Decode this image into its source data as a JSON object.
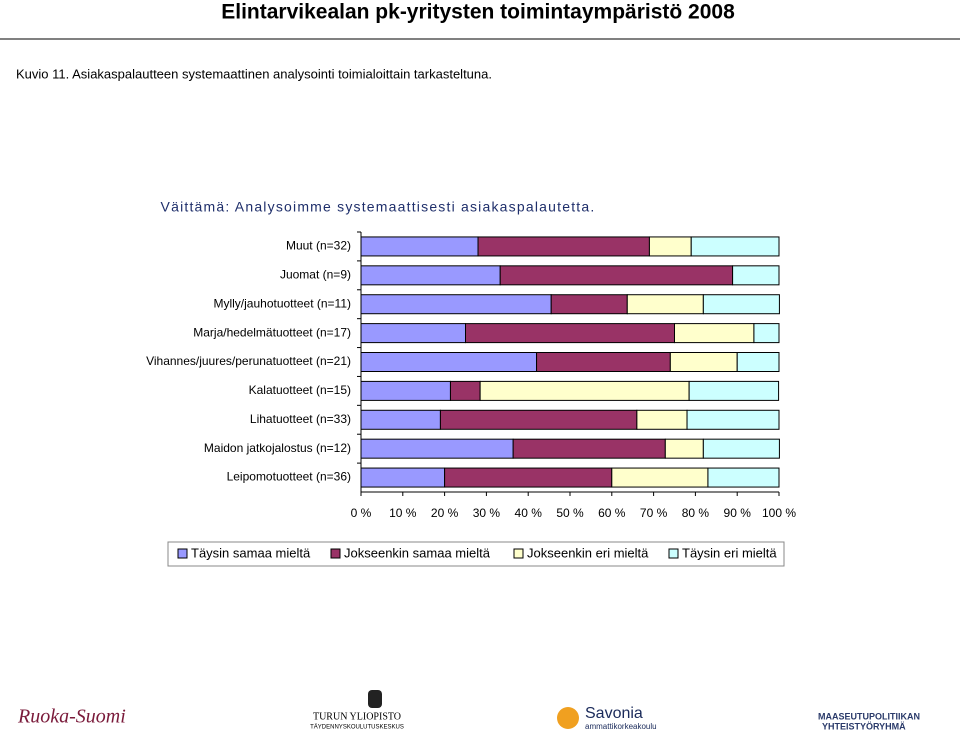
{
  "header": {
    "title": "Elintarvikealan pk-yritysten toimintaympäristö 2008"
  },
  "caption": "Kuvio 11. Asiakaspalautteen systemaattinen analysointi toimialoittain tarkasteltuna.",
  "chart_data": {
    "type": "stacked-bar-horizontal",
    "title": "Väittämä: Analysoimme systemaattisesti asiakaspalautetta.",
    "categories": [
      "Muut (n=32)",
      "Juomat (n=9)",
      "Mylly/jauhotuotteet (n=11)",
      "Marja/hedelmätuotteet (n=17)",
      "Vihannes/juures/perunatuotteet (n=21)",
      "Kalatuotteet (n=15)",
      "Lihatuotteet (n=33)",
      "Maidon jatkojalostus (n=12)",
      "Leipomotuotteet (n=36)"
    ],
    "series": [
      {
        "name": "Täysin samaa mieltä",
        "color": "#9999ff",
        "values": [
          28,
          33.3,
          45.5,
          25,
          42,
          21.4,
          19,
          36.4,
          20
        ]
      },
      {
        "name": "Jokseenkin samaa mieltä",
        "color": "#993366",
        "values": [
          41,
          55.6,
          18.2,
          50,
          32,
          7.1,
          47,
          36.4,
          40
        ]
      },
      {
        "name": "Jokseenkin eri mieltä",
        "color": "#ffffcc",
        "values": [
          10,
          0,
          18.2,
          19,
          16,
          50,
          12,
          9.1,
          23
        ]
      },
      {
        "name": "Täysin eri mieltä",
        "color": "#ccffff",
        "values": [
          21,
          11.1,
          18.2,
          6,
          10,
          21.4,
          22,
          18.2,
          17
        ]
      }
    ],
    "xlim": [
      0,
      100
    ],
    "xticks": [
      {
        "value": 0,
        "label": "0 %"
      },
      {
        "value": 10,
        "label": "10 %"
      },
      {
        "value": 20,
        "label": "20 %"
      },
      {
        "value": 30,
        "label": "30 %"
      },
      {
        "value": 40,
        "label": "40 %"
      },
      {
        "value": 50,
        "label": "50 %"
      },
      {
        "value": 60,
        "label": "60 %"
      },
      {
        "value": 70,
        "label": "70 %"
      },
      {
        "value": 80,
        "label": "80 %"
      },
      {
        "value": 90,
        "label": "90 %"
      },
      {
        "value": 100,
        "label": "100 %"
      }
    ],
    "legend": "bottom"
  },
  "logos": [
    "Ruoka-Suomi",
    "TURUN YLIOPISTO",
    "TÄYDENNYSKOULUTUSKESKUS",
    "Savonia",
    "ammattikorkeakoulu",
    "MAASEUTUPOLITIIKAN",
    "YHTEISTYÖRYHMÄ"
  ]
}
